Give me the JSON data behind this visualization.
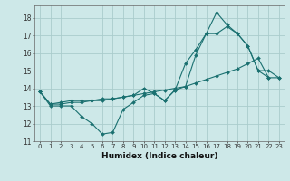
{
  "xlabel": "Humidex (Indice chaleur)",
  "background_color": "#cde8e8",
  "grid_color": "#aacccc",
  "line_color": "#1a7070",
  "xlim": [
    -0.5,
    23.5
  ],
  "ylim": [
    11,
    18.7
  ],
  "yticks": [
    11,
    12,
    13,
    14,
    15,
    16,
    17,
    18
  ],
  "xticks": [
    0,
    1,
    2,
    3,
    4,
    5,
    6,
    7,
    8,
    9,
    10,
    11,
    12,
    13,
    14,
    15,
    16,
    17,
    18,
    19,
    20,
    21,
    22,
    23
  ],
  "line1_x": [
    0,
    1,
    2,
    3,
    4,
    5,
    6,
    7,
    8,
    9,
    10,
    11,
    12,
    13,
    14,
    15,
    16,
    17,
    18,
    19,
    20,
    21,
    22
  ],
  "line1_y": [
    13.8,
    13.0,
    13.0,
    13.0,
    12.4,
    12.0,
    11.4,
    11.5,
    12.8,
    13.2,
    13.6,
    13.7,
    13.3,
    13.9,
    14.1,
    15.9,
    17.1,
    17.1,
    17.5,
    17.1,
    16.4,
    15.0,
    14.6
  ],
  "line2_x": [
    0,
    1,
    2,
    3,
    4,
    5,
    6,
    7,
    8,
    9,
    10,
    11,
    12,
    13,
    14,
    15,
    16,
    17,
    18,
    19,
    20,
    21,
    22,
    23
  ],
  "line2_y": [
    13.8,
    13.1,
    13.2,
    13.3,
    13.3,
    13.3,
    13.4,
    13.4,
    13.5,
    13.6,
    13.7,
    13.8,
    13.9,
    14.0,
    14.1,
    14.3,
    14.5,
    14.7,
    14.9,
    15.1,
    15.4,
    15.7,
    14.6,
    14.6
  ],
  "line3_x": [
    0,
    1,
    2,
    3,
    4,
    5,
    6,
    7,
    8,
    9,
    10,
    11,
    12,
    13,
    14,
    15,
    16,
    17,
    18,
    19,
    20,
    21,
    22,
    23
  ],
  "line3_y": [
    13.8,
    13.1,
    13.1,
    13.2,
    13.2,
    13.3,
    13.3,
    13.4,
    13.5,
    13.6,
    14.0,
    13.7,
    13.3,
    13.9,
    15.4,
    16.2,
    17.1,
    18.3,
    17.6,
    17.1,
    16.4,
    15.0,
    15.0,
    14.6
  ]
}
